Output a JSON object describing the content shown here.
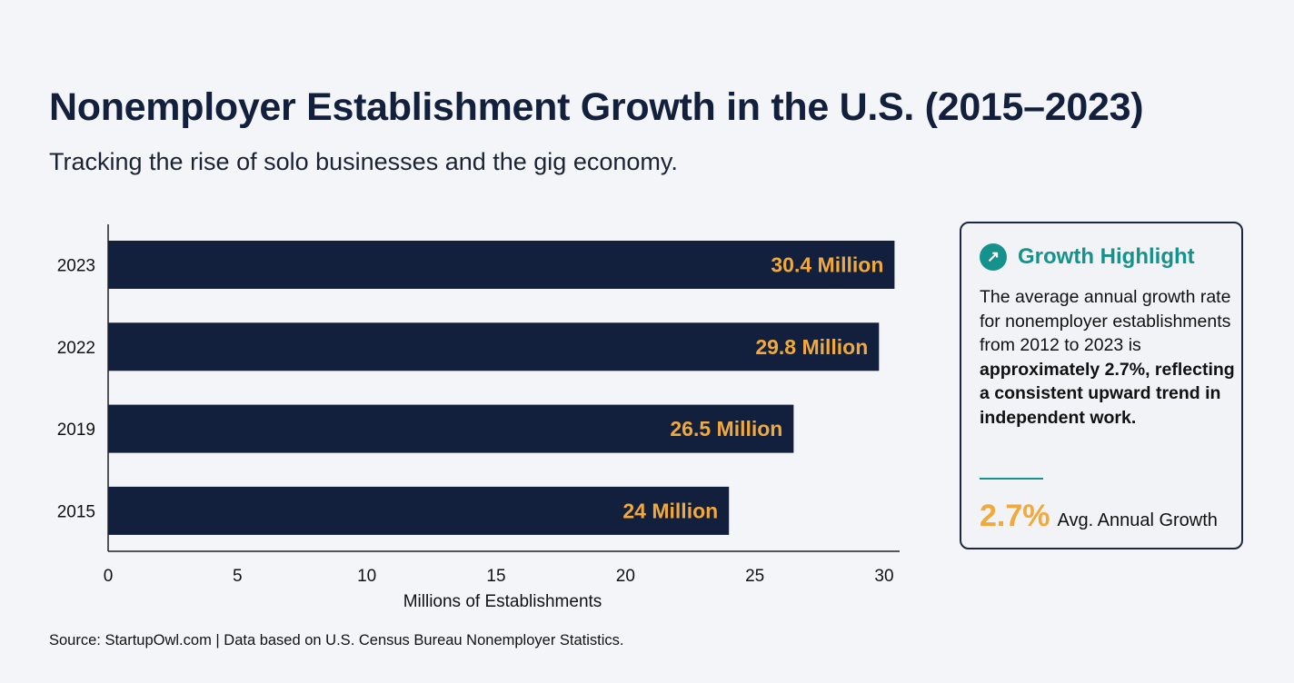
{
  "header": {
    "title": "Nonemployer Establishment Growth in the U.S. (2015–2023)",
    "subtitle": "Tracking the rise of solo businesses and the gig economy."
  },
  "chart_data": {
    "type": "bar",
    "orientation": "horizontal",
    "categories": [
      "2023",
      "2022",
      "2019",
      "2015"
    ],
    "values": [
      30.4,
      29.8,
      26.5,
      24
    ],
    "data_labels": [
      "30.4 Million",
      "29.8 Million",
      "26.5 Million",
      "24 Million"
    ],
    "xlabel": "Millions of Establishments",
    "ylabel": "",
    "xlim": [
      0,
      30.5
    ],
    "xticks": [
      0,
      5,
      10,
      15,
      20,
      25,
      30
    ],
    "grid": false,
    "bar_color": "#13203d",
    "label_color": "#f0a93a"
  },
  "highlight": {
    "title": "Growth Highlight",
    "icon": "arrow-up-right-icon",
    "body_plain": "The average annual growth rate for nonemployer establishments from 2012 to 2023 is ",
    "body_bold": "approximately 2.7%, reflecting a consistent upward trend in independent work.",
    "stat_value": "2.7%",
    "stat_label": "Avg. Annual Growth",
    "accent_color": "#16928c"
  },
  "footer": {
    "source": "Source: StartupOwl.com | Data based on U.S. Census Bureau Nonemployer Statistics."
  }
}
